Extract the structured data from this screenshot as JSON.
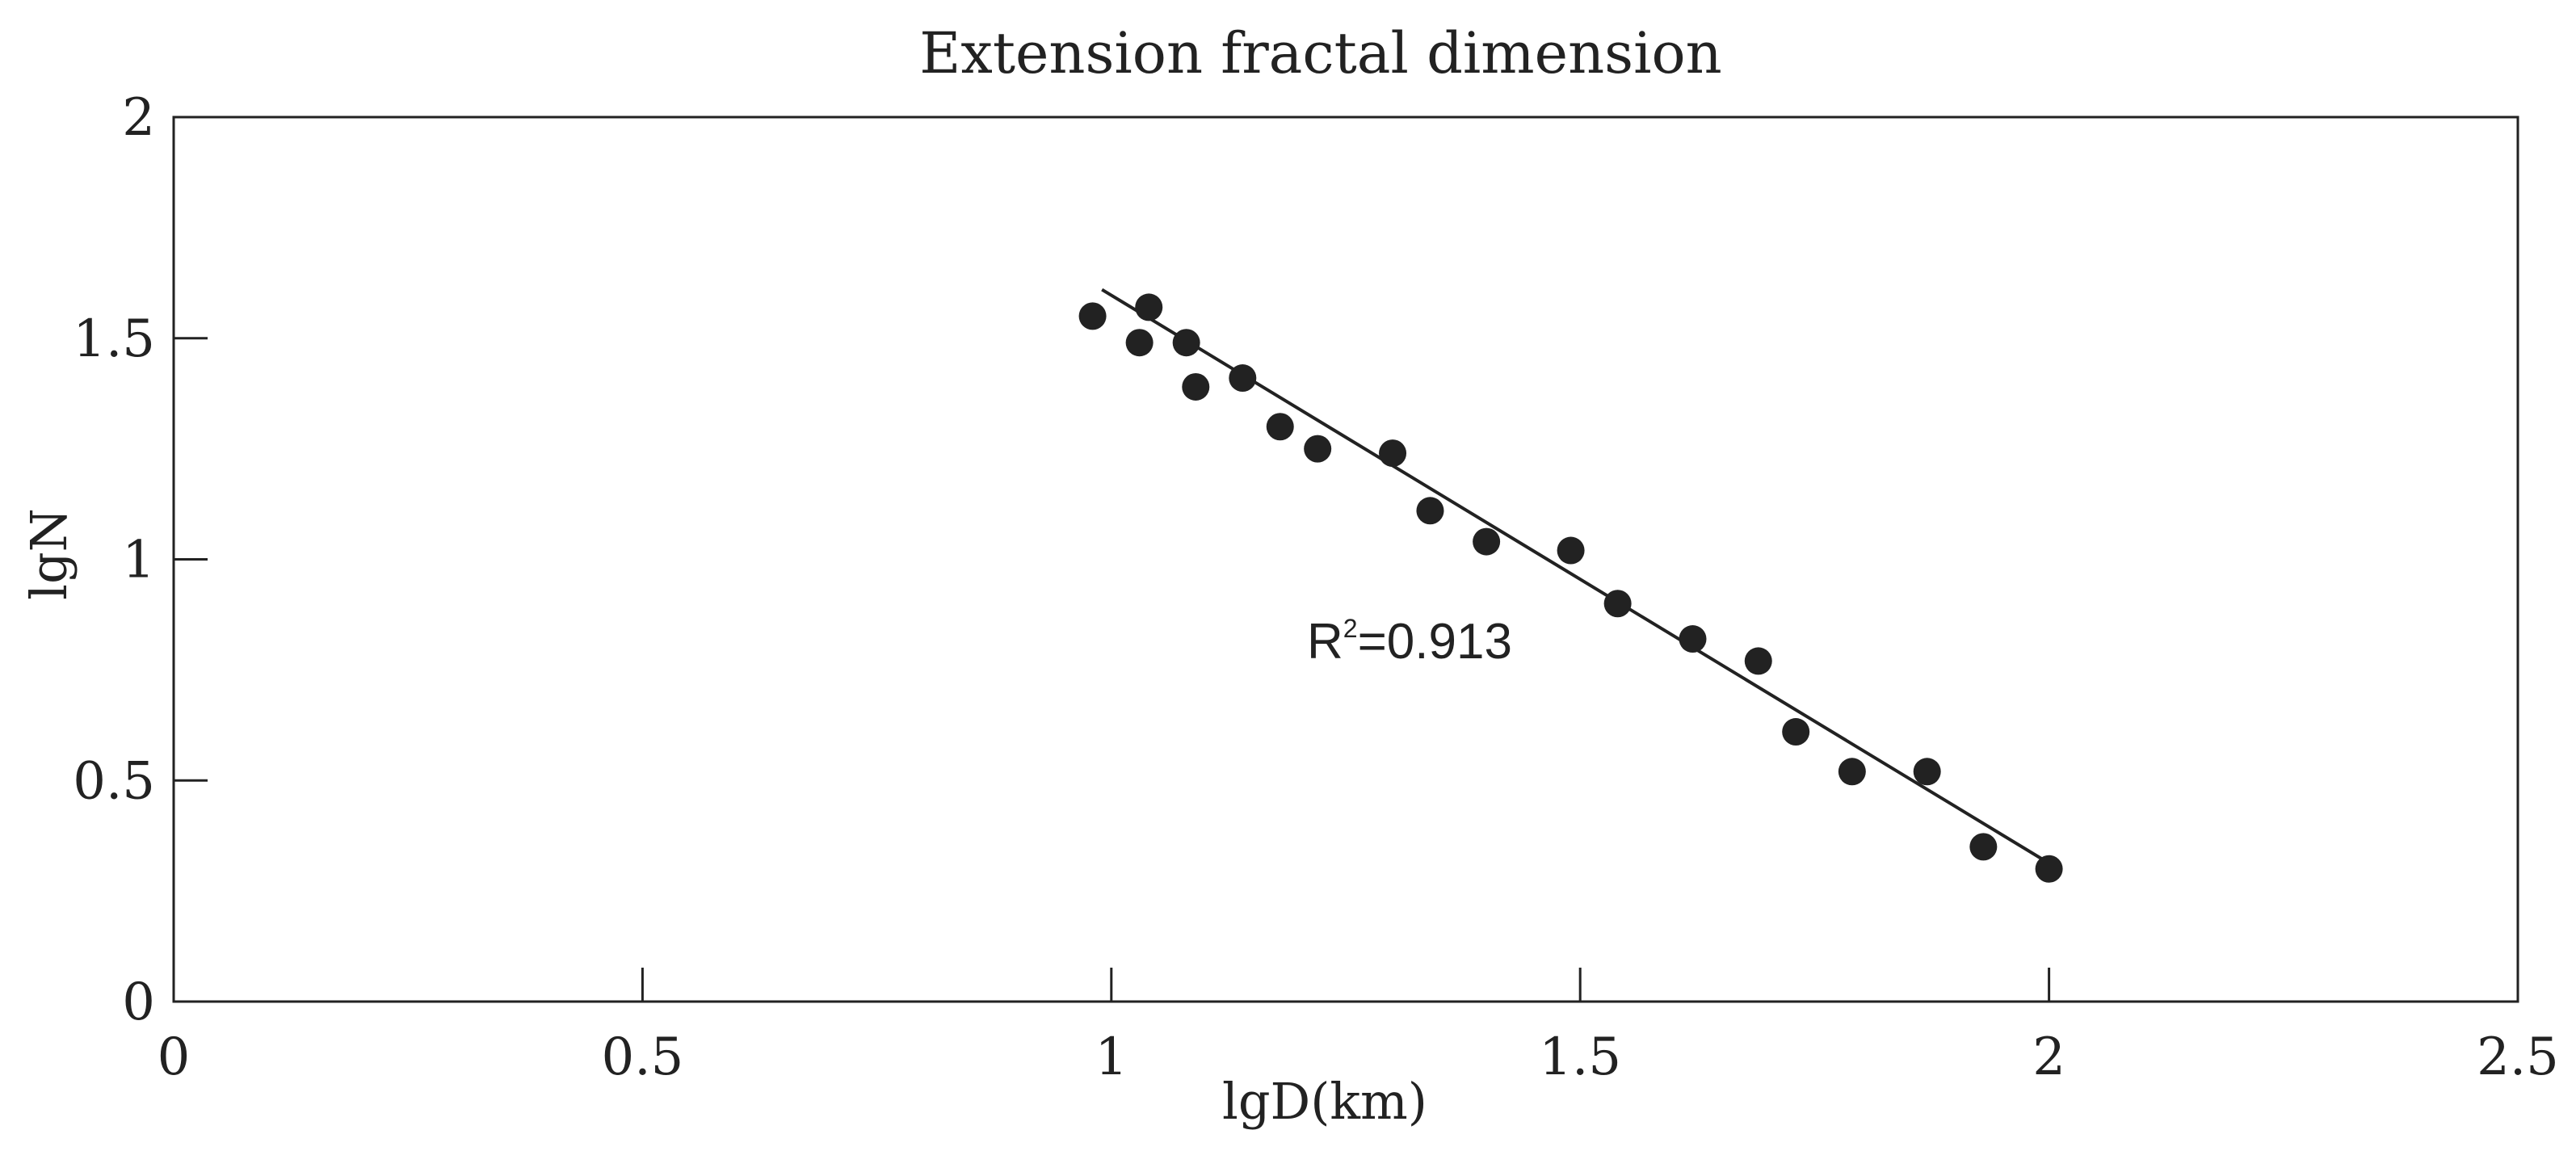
{
  "chart_data": {
    "type": "scatter",
    "title": "Extension fractal dimension",
    "xlabel": "lgD(km)",
    "ylabel": "lgN",
    "xlim": [
      0,
      2.5
    ],
    "ylim": [
      0,
      2
    ],
    "xticks": [
      0,
      0.5,
      1,
      1.5,
      2,
      2.5
    ],
    "yticks": [
      0,
      0.5,
      1,
      1.5,
      2
    ],
    "xtick_labels": [
      "0",
      "0.5",
      "1",
      "1.5",
      "2",
      "2.5"
    ],
    "ytick_labels": [
      "0",
      "0.5",
      "1",
      "1.5",
      "2"
    ],
    "grid": false,
    "x": [
      0.98,
      1.03,
      1.04,
      1.08,
      1.09,
      1.14,
      1.18,
      1.22,
      1.3,
      1.34,
      1.4,
      1.49,
      1.54,
      1.62,
      1.69,
      1.73,
      1.79,
      1.87,
      1.93,
      2.0
    ],
    "y": [
      1.55,
      1.49,
      1.57,
      1.49,
      1.39,
      1.41,
      1.3,
      1.25,
      1.24,
      1.11,
      1.04,
      1.02,
      0.9,
      0.82,
      0.77,
      0.61,
      0.52,
      0.52,
      0.35,
      0.3
    ],
    "trendline": {
      "x": [
        0.99,
        2.01
      ],
      "y": [
        1.61,
        0.3
      ]
    },
    "annotation": {
      "prefix": "R",
      "superscript": "2",
      "suffix": "=0.913"
    }
  }
}
